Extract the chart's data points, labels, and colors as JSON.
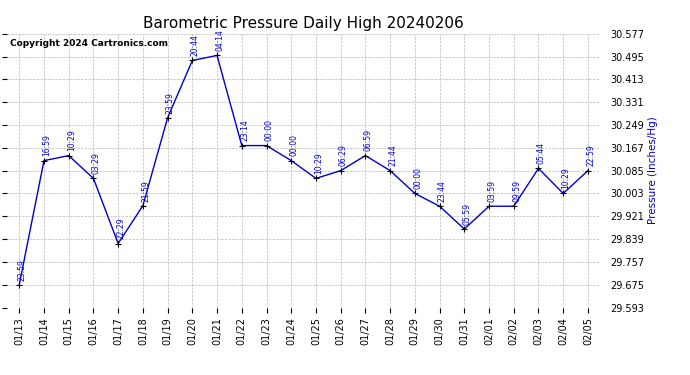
{
  "title": "Barometric Pressure Daily High 20240206",
  "ylabel": "Pressure (Inches/Hg)",
  "copyright": "Copyright 2024 Cartronics.com",
  "ylim": [
    29.593,
    30.577
  ],
  "yticks": [
    29.593,
    29.675,
    29.757,
    29.839,
    29.921,
    30.003,
    30.085,
    30.167,
    30.249,
    30.331,
    30.413,
    30.495,
    30.577
  ],
  "dates": [
    "01/13",
    "01/14",
    "01/15",
    "01/16",
    "01/17",
    "01/18",
    "01/19",
    "01/20",
    "01/21",
    "01/22",
    "01/23",
    "01/24",
    "01/25",
    "01/26",
    "01/27",
    "01/28",
    "01/29",
    "01/30",
    "01/31",
    "02/01",
    "02/02",
    "02/03",
    "02/04",
    "02/05"
  ],
  "values": [
    29.675,
    30.121,
    30.139,
    30.057,
    29.823,
    29.959,
    30.275,
    30.481,
    30.499,
    30.175,
    30.175,
    30.121,
    30.057,
    30.085,
    30.139,
    30.085,
    30.003,
    29.957,
    29.875,
    29.957,
    29.957,
    30.093,
    30.003,
    30.085
  ],
  "time_labels": [
    "23:59",
    "16:59",
    "10:29",
    "03:29",
    "22:29",
    "21:59",
    "23:59",
    "20:44",
    "04:14",
    "23:14",
    "00:00",
    "00:00",
    "10:29",
    "06:29",
    "06:59",
    "21:44",
    "00:00",
    "23:44",
    "05:59",
    "03:59",
    "09:59",
    "05:44",
    "10:29",
    "22:59"
  ],
  "line_color": "#0000cc",
  "marker_color": "#000000",
  "grid_color": "#b8b8b8",
  "background_color": "#ffffff",
  "title_fontsize": 11,
  "ylabel_fontsize": 7.5,
  "tick_fontsize": 7,
  "annot_fontsize": 5.5,
  "copyright_fontsize": 6.5
}
